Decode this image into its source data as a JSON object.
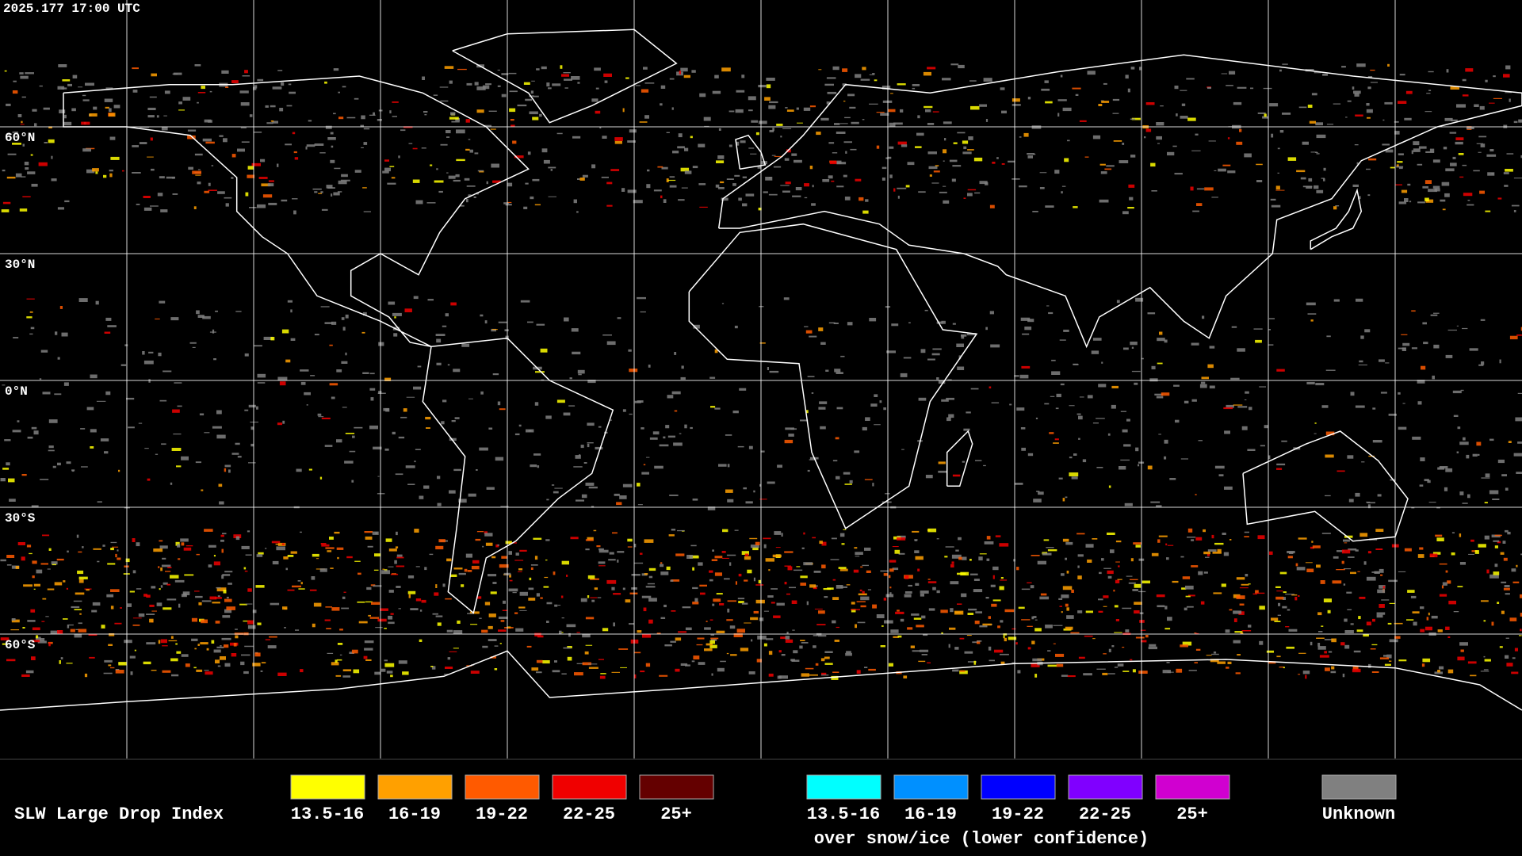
{
  "header": {
    "timestamp": "2025.177 17:00 UTC"
  },
  "map": {
    "latitude_labels": [
      "60°N",
      "30°N",
      "0°N",
      "30°S",
      "60°S"
    ]
  },
  "legend": {
    "title": "SLW Large Drop Index",
    "items": [
      {
        "label": "13.5-16",
        "color": "#ffff00"
      },
      {
        "label": "16-19",
        "color": "#ffa000"
      },
      {
        "label": "19-22",
        "color": "#ff5a00"
      },
      {
        "label": "22-25",
        "color": "#f00000"
      },
      {
        "label": "25+",
        "color": "#640000"
      }
    ],
    "snow_items": [
      {
        "label": "13.5-16",
        "color": "#00ffff"
      },
      {
        "label": "16-19",
        "color": "#0090ff"
      },
      {
        "label": "19-22",
        "color": "#0000ff"
      },
      {
        "label": "22-25",
        "color": "#8000ff"
      },
      {
        "label": "25+",
        "color": "#d000d0"
      }
    ],
    "snow_note": "over snow/ice (lower confidence)",
    "unknown": {
      "label": "Unknown",
      "color": "#808080"
    }
  }
}
